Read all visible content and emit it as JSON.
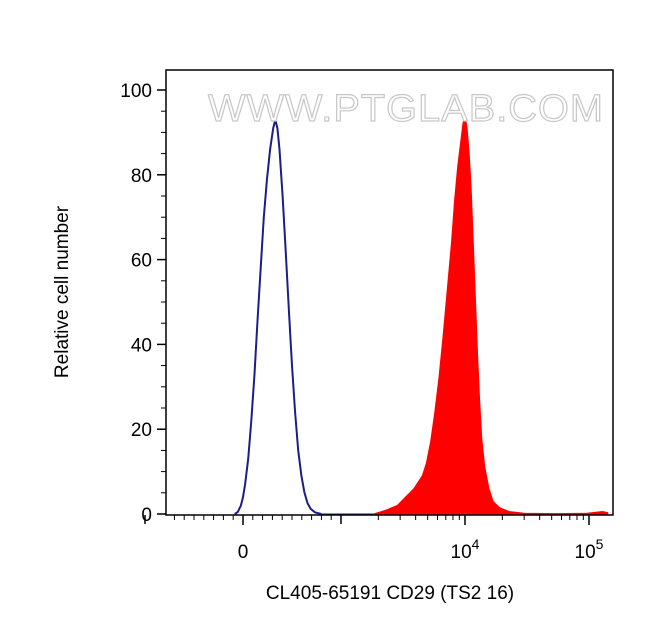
{
  "watermark": "WWW.PTGLAB.COM",
  "chart_data": {
    "type": "area",
    "xlabel": "CL405-65191 CD29 (TS2 16)",
    "ylabel": "Relative cell number",
    "x_scale": "biexponential",
    "x_ticks": [
      {
        "value": 0,
        "base": "0",
        "exp": ""
      },
      {
        "value": 10000,
        "base": "10",
        "exp": "4"
      },
      {
        "value": 100000,
        "base": "10",
        "exp": "5"
      }
    ],
    "ylim": [
      0,
      100
    ],
    "y_ticks": [
      0,
      20,
      40,
      60,
      80,
      100
    ],
    "series": [
      {
        "style": "outline",
        "color": "#1c1c8c",
        "points": [
          [
            -8,
            0
          ],
          [
            -5,
            0.5
          ],
          [
            -2,
            2
          ],
          [
            0,
            4
          ],
          [
            2,
            7
          ],
          [
            5,
            13
          ],
          [
            8,
            22
          ],
          [
            11,
            33
          ],
          [
            14,
            46
          ],
          [
            17,
            58
          ],
          [
            20,
            70
          ],
          [
            23,
            79
          ],
          [
            26,
            86
          ],
          [
            29,
            91
          ],
          [
            31,
            93
          ],
          [
            33,
            91
          ],
          [
            35,
            86
          ],
          [
            38,
            75
          ],
          [
            41,
            62
          ],
          [
            44,
            48
          ],
          [
            47,
            35
          ],
          [
            50,
            24
          ],
          [
            53,
            15
          ],
          [
            56,
            9
          ],
          [
            59,
            5
          ],
          [
            62,
            2.5
          ],
          [
            65,
            1.2
          ],
          [
            69,
            0.4
          ],
          [
            75,
            0
          ]
        ]
      },
      {
        "style": "filled",
        "color": "#ff0000",
        "points": [
          [
            125,
            0
          ],
          [
            132,
            0.5
          ],
          [
            138,
            1
          ],
          [
            143,
            1.5
          ],
          [
            148,
            2
          ],
          [
            152,
            3
          ],
          [
            156,
            4
          ],
          [
            160,
            5
          ],
          [
            164,
            6
          ],
          [
            168,
            7.5
          ],
          [
            172,
            9
          ],
          [
            176,
            12
          ],
          [
            180,
            17
          ],
          [
            184,
            24
          ],
          [
            188,
            32
          ],
          [
            192,
            42
          ],
          [
            196,
            53
          ],
          [
            200,
            64
          ],
          [
            203,
            74
          ],
          [
            206,
            82
          ],
          [
            209,
            88
          ],
          [
            211,
            92
          ],
          [
            213,
            94
          ],
          [
            215,
            91
          ],
          [
            217,
            85
          ],
          [
            219,
            76
          ],
          [
            221,
            64
          ],
          [
            223,
            51
          ],
          [
            225,
            38
          ],
          [
            227,
            27
          ],
          [
            229,
            18
          ],
          [
            232,
            11
          ],
          [
            236,
            6
          ],
          [
            240,
            3
          ],
          [
            246,
            1.5
          ],
          [
            255,
            0.6
          ],
          [
            270,
            0.2
          ],
          [
            300,
            0.1
          ],
          [
            330,
            0.2
          ],
          [
            345,
            0.6
          ],
          [
            350,
            0.3
          ]
        ]
      }
    ]
  }
}
